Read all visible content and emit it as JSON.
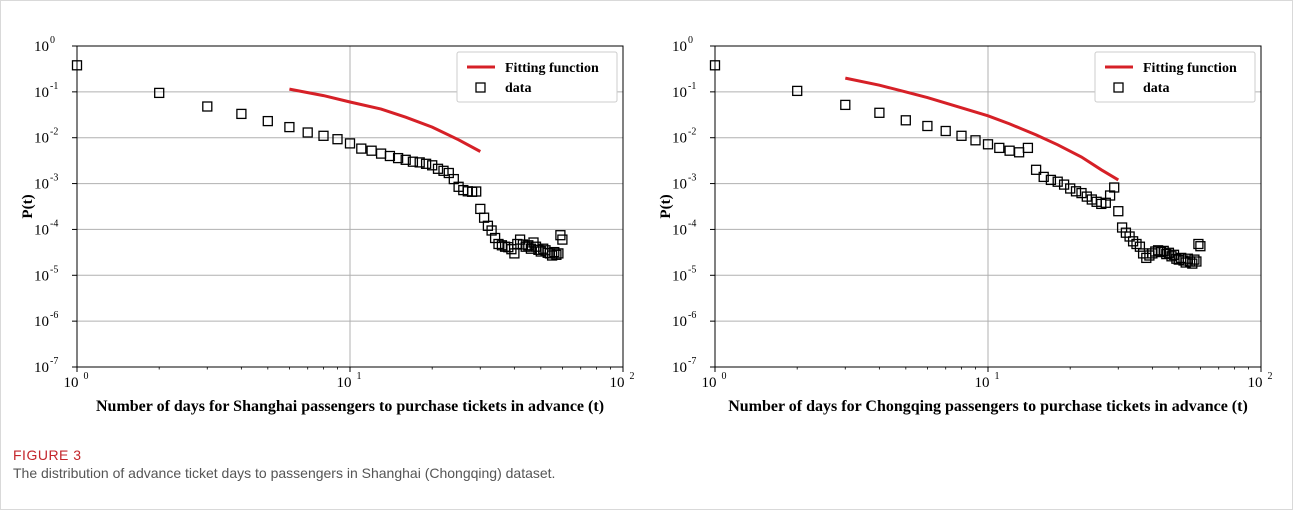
{
  "figure": {
    "label": "FIGURE 3",
    "caption": "The distribution of advance ticket days to passengers in Shanghai (Chongqing) dataset."
  },
  "colors": {
    "fit": "#d62027",
    "marker": "#000000",
    "grid": "#b0b0b0"
  },
  "chart_data": [
    {
      "type": "scatter",
      "xlabel": "Number of days for Shanghai passengers to purchase tickets in advance (t)",
      "ylabel": "P(t)",
      "x_scale": "log",
      "y_scale": "log",
      "xlim": [
        1,
        100
      ],
      "ylim": [
        1e-07,
        1
      ],
      "x_ticks": [
        {
          "value": 1,
          "base": "10",
          "exp": "0"
        },
        {
          "value": 10,
          "base": "10",
          "exp": "1"
        },
        {
          "value": 100,
          "base": "10",
          "exp": "2"
        }
      ],
      "y_ticks": [
        {
          "value": 1,
          "base": "10",
          "exp": "0"
        },
        {
          "value": 0.1,
          "base": "10",
          "exp": "-1"
        },
        {
          "value": 0.01,
          "base": "10",
          "exp": "-2"
        },
        {
          "value": 0.001,
          "base": "10",
          "exp": "-3"
        },
        {
          "value": 0.0001,
          "base": "10",
          "exp": "-4"
        },
        {
          "value": 1e-05,
          "base": "10",
          "exp": "-5"
        },
        {
          "value": 1e-06,
          "base": "10",
          "exp": "-6"
        },
        {
          "value": 1e-07,
          "base": "10",
          "exp": "-7"
        }
      ],
      "grid": true,
      "legend_position": "top-right",
      "series": [
        {
          "name": "Fitting function",
          "kind": "line",
          "color": "#d62027",
          "x": [
            6,
            8,
            10,
            13,
            16,
            20,
            25,
            30
          ],
          "y": [
            0.115,
            0.083,
            0.06,
            0.042,
            0.028,
            0.017,
            0.009,
            0.005
          ]
        },
        {
          "name": "data",
          "kind": "marker",
          "marker": "square",
          "x": [
            1,
            2,
            3,
            4,
            5,
            6,
            7,
            8,
            9,
            10,
            11,
            12,
            13,
            14,
            15,
            16,
            17,
            18,
            19,
            20,
            21,
            22,
            23,
            24,
            25,
            26,
            27,
            28,
            29,
            30,
            31,
            32,
            33,
            34,
            35,
            36,
            37,
            38,
            39,
            40,
            41,
            42,
            43,
            44,
            45,
            46,
            47,
            48,
            49,
            50,
            51,
            52,
            53,
            54,
            55,
            56,
            57,
            58,
            59,
            60
          ],
          "y": [
            0.38,
            0.095,
            0.048,
            0.033,
            0.023,
            0.017,
            0.013,
            0.011,
            0.0093,
            0.0075,
            0.0058,
            0.0052,
            0.0045,
            0.004,
            0.0036,
            0.0033,
            0.003,
            0.0029,
            0.0027,
            0.0025,
            0.0021,
            0.0019,
            0.0017,
            0.00125,
            0.00085,
            0.00072,
            0.00068,
            0.00066,
            0.00067,
            0.00028,
            0.00018,
            0.00012,
            9.5e-05,
            6.5e-05,
            4.8e-05,
            4.5e-05,
            4.2e-05,
            4.1e-05,
            3.7e-05,
            3e-05,
            4.8e-05,
            6e-05,
            4.7e-05,
            4.2e-05,
            4.5e-05,
            3.8e-05,
            5.2e-05,
            4.2e-05,
            3.6e-05,
            3.3e-05,
            3.8e-05,
            3.5e-05,
            3.1e-05,
            3e-05,
            2.7e-05,
            3.2e-05,
            2.8e-05,
            3e-05,
            7.5e-05,
            6e-05
          ]
        }
      ]
    },
    {
      "type": "scatter",
      "xlabel": "Number of days for Chongqing passengers to purchase tickets in advance (t)",
      "ylabel": "P(t)",
      "x_scale": "log",
      "y_scale": "log",
      "xlim": [
        1,
        100
      ],
      "ylim": [
        1e-07,
        1
      ],
      "x_ticks": [
        {
          "value": 1,
          "base": "10",
          "exp": "0"
        },
        {
          "value": 10,
          "base": "10",
          "exp": "1"
        },
        {
          "value": 100,
          "base": "10",
          "exp": "2"
        }
      ],
      "y_ticks": [
        {
          "value": 1,
          "base": "10",
          "exp": "0"
        },
        {
          "value": 0.1,
          "base": "10",
          "exp": "-1"
        },
        {
          "value": 0.01,
          "base": "10",
          "exp": "-2"
        },
        {
          "value": 0.001,
          "base": "10",
          "exp": "-3"
        },
        {
          "value": 0.0001,
          "base": "10",
          "exp": "-4"
        },
        {
          "value": 1e-05,
          "base": "10",
          "exp": "-5"
        },
        {
          "value": 1e-06,
          "base": "10",
          "exp": "-6"
        },
        {
          "value": 1e-07,
          "base": "10",
          "exp": "-7"
        }
      ],
      "grid": true,
      "legend_position": "top-right",
      "series": [
        {
          "name": "Fitting function",
          "kind": "line",
          "color": "#d62027",
          "x": [
            3,
            4,
            5,
            6,
            8,
            10,
            12,
            15,
            18,
            22,
            26,
            30
          ],
          "y": [
            0.2,
            0.14,
            0.1,
            0.075,
            0.045,
            0.03,
            0.02,
            0.0115,
            0.007,
            0.0038,
            0.002,
            0.0012
          ]
        },
        {
          "name": "data",
          "kind": "marker",
          "marker": "square",
          "x": [
            1,
            2,
            3,
            4,
            5,
            6,
            7,
            8,
            9,
            10,
            11,
            12,
            13,
            14,
            15,
            16,
            17,
            18,
            19,
            20,
            21,
            22,
            23,
            24,
            25,
            26,
            27,
            28,
            29,
            30,
            31,
            32,
            33,
            34,
            35,
            36,
            37,
            38,
            39,
            40,
            41,
            42,
            43,
            44,
            45,
            46,
            47,
            48,
            49,
            50,
            51,
            52,
            53,
            54,
            55,
            56,
            57,
            58,
            59,
            60
          ],
          "y": [
            0.38,
            0.105,
            0.052,
            0.035,
            0.024,
            0.018,
            0.014,
            0.011,
            0.0088,
            0.0072,
            0.006,
            0.0052,
            0.0048,
            0.006,
            0.002,
            0.0014,
            0.0012,
            0.0011,
            0.00095,
            0.00078,
            0.00068,
            0.00062,
            0.00052,
            0.00045,
            0.0004,
            0.00036,
            0.00038,
            0.00055,
            0.00082,
            0.00025,
            0.00011,
            8.5e-05,
            7e-05,
            5.5e-05,
            4.8e-05,
            4.2e-05,
            3e-05,
            2.4e-05,
            2.7e-05,
            3e-05,
            3.3e-05,
            3.5e-05,
            3.2e-05,
            3.4e-05,
            2.9e-05,
            3.1e-05,
            2.6e-05,
            2.8e-05,
            2.3e-05,
            2.2e-05,
            2.4e-05,
            2.1e-05,
            1.9e-05,
            2.3e-05,
            2e-05,
            1.8e-05,
            2.2e-05,
            2e-05,
            4.8e-05,
            4.3e-05
          ]
        }
      ]
    }
  ]
}
